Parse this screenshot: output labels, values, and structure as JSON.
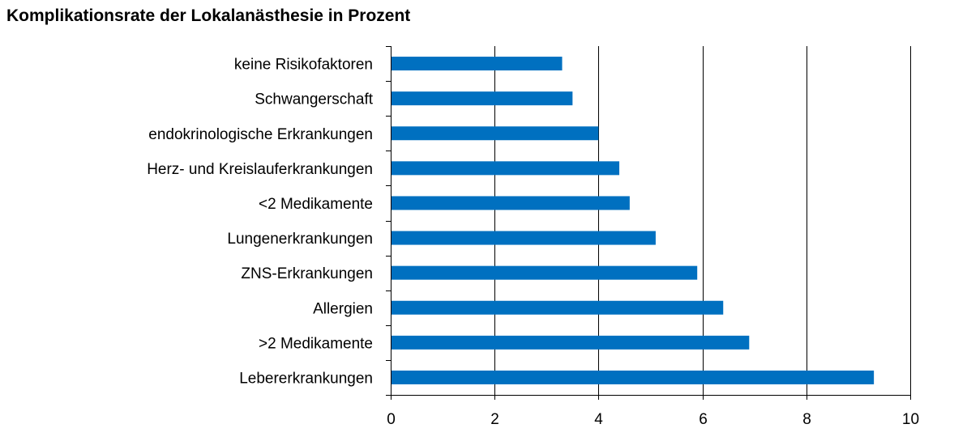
{
  "chart_data": {
    "type": "bar",
    "orientation": "horizontal",
    "title": "Komplikationsrate der Lokalanästhesie in Prozent",
    "xlabel": "",
    "ylabel": "",
    "categories": [
      "keine Risikofaktoren",
      "Schwangerschaft",
      "endokrinologische Erkrankungen",
      "Herz- und Kreislauferkrankungen",
      "<2 Medikamente",
      "Lungenerkrankungen",
      "ZNS-Erkrankungen",
      "Allergien",
      ">2 Medikamente",
      "Lebererkrankungen"
    ],
    "values": [
      3.3,
      3.5,
      4.0,
      4.4,
      4.6,
      5.1,
      5.9,
      6.4,
      6.9,
      9.3
    ],
    "xlim": [
      0,
      10
    ],
    "xticks": [
      "0",
      "2",
      "4",
      "6",
      "8",
      "10"
    ],
    "grid": "vertical",
    "legend": "none",
    "bar_color": "#0070C0"
  }
}
